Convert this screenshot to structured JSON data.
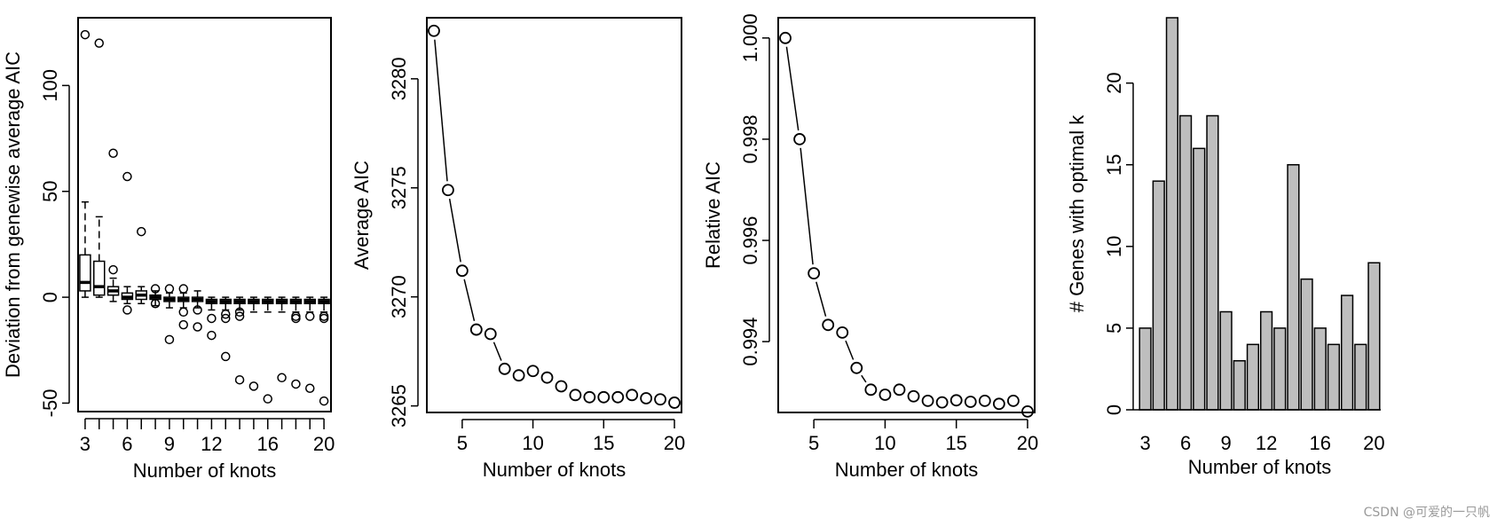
{
  "watermark": "CSDN @可爱的一只帆",
  "chart_data": [
    {
      "type": "box",
      "xlabel": "Number of knots",
      "ylabel": "Deviation from genewise average AIC",
      "xlim": [
        2.5,
        20.5
      ],
      "ylim": [
        -54,
        132
      ],
      "xticks": [
        3,
        6,
        9,
        12,
        16,
        20
      ],
      "yticks": [
        -50,
        0,
        50,
        100
      ],
      "boxes": [
        {
          "k": 3,
          "wlo": 0,
          "q1": 3,
          "med": 7,
          "q3": 20,
          "whi": 45,
          "outliers": [
            124
          ]
        },
        {
          "k": 4,
          "wlo": 0,
          "q1": 1,
          "med": 5,
          "q3": 17,
          "whi": 38,
          "outliers": [
            120
          ]
        },
        {
          "k": 5,
          "wlo": -2,
          "q1": 1,
          "med": 3,
          "q3": 5,
          "whi": 9,
          "outliers": [
            13,
            68
          ]
        },
        {
          "k": 6,
          "wlo": -3,
          "q1": -1,
          "med": 0,
          "q3": 2,
          "whi": 5,
          "outliers": [
            -6,
            57
          ]
        },
        {
          "k": 7,
          "wlo": -3,
          "q1": -1,
          "med": 1,
          "q3": 3,
          "whi": 5,
          "outliers": [
            31
          ]
        },
        {
          "k": 8,
          "wlo": -4,
          "q1": -1,
          "med": 0,
          "q3": 1,
          "whi": 3,
          "outliers": [
            4,
            -3
          ]
        },
        {
          "k": 9,
          "wlo": -5,
          "q1": -2,
          "med": -1,
          "q3": 0,
          "whi": 2,
          "outliers": [
            4,
            -20
          ]
        },
        {
          "k": 10,
          "wlo": -5,
          "q1": -2,
          "med": -1,
          "q3": 0,
          "whi": 2,
          "outliers": [
            4,
            -7,
            -13
          ]
        },
        {
          "k": 11,
          "wlo": -5,
          "q1": -2,
          "med": -1,
          "q3": 0,
          "whi": 3,
          "outliers": [
            -6,
            -14
          ]
        },
        {
          "k": 12,
          "wlo": -6,
          "q1": -3,
          "med": -2,
          "q3": -1,
          "whi": 0,
          "outliers": [
            -10,
            -18
          ]
        },
        {
          "k": 13,
          "wlo": -6,
          "q1": -3,
          "med": -2,
          "q3": -1,
          "whi": 0,
          "outliers": [
            -8,
            -10,
            -28
          ]
        },
        {
          "k": 14,
          "wlo": -6,
          "q1": -3,
          "med": -2,
          "q3": -1,
          "whi": 0,
          "outliers": [
            -7,
            -9,
            -39
          ]
        },
        {
          "k": 15,
          "wlo": -7,
          "q1": -3,
          "med": -2,
          "q3": -1,
          "whi": 0,
          "outliers": [
            -42
          ]
        },
        {
          "k": 16,
          "wlo": -7,
          "q1": -3,
          "med": -2,
          "q3": -1,
          "whi": 0,
          "outliers": [
            -48
          ]
        },
        {
          "k": 17,
          "wlo": -7,
          "q1": -3,
          "med": -2,
          "q3": -1,
          "whi": 0,
          "outliers": [
            -38
          ]
        },
        {
          "k": 18,
          "wlo": -7,
          "q1": -3,
          "med": -2,
          "q3": -1,
          "whi": 0,
          "outliers": [
            -9,
            -10,
            -41
          ]
        },
        {
          "k": 19,
          "wlo": -7,
          "q1": -3,
          "med": -2,
          "q3": -1,
          "whi": 0,
          "outliers": [
            -9,
            -43
          ]
        },
        {
          "k": 20,
          "wlo": -7,
          "q1": -3,
          "med": -2,
          "q3": -1,
          "whi": 0,
          "outliers": [
            -9,
            -10,
            -49
          ]
        }
      ]
    },
    {
      "type": "line",
      "xlabel": "Number of knots",
      "ylabel": "Average AIC",
      "xlim": [
        2.5,
        20.5
      ],
      "ylim": [
        3264.7,
        3282.8
      ],
      "xticks": [
        5,
        10,
        15,
        20
      ],
      "yticks": [
        3265,
        3270,
        3275,
        3280
      ],
      "x": [
        3,
        4,
        5,
        6,
        7,
        8,
        9,
        10,
        11,
        12,
        13,
        14,
        15,
        16,
        17,
        18,
        19,
        20
      ],
      "y": [
        3282.2,
        3274.9,
        3271.2,
        3268.5,
        3268.3,
        3266.7,
        3266.4,
        3266.6,
        3266.3,
        3265.9,
        3265.5,
        3265.4,
        3265.4,
        3265.4,
        3265.5,
        3265.35,
        3265.3,
        3265.15
      ]
    },
    {
      "type": "line",
      "xlabel": "Number of knots",
      "ylabel": "Relative AIC",
      "xlim": [
        2.5,
        20.5
      ],
      "ylim": [
        0.9926,
        1.0004
      ],
      "xticks": [
        5,
        10,
        15,
        20
      ],
      "yticks": [
        "0.994",
        "0.996",
        "0.998",
        "1.000"
      ],
      "x": [
        3,
        4,
        5,
        6,
        7,
        8,
        9,
        10,
        11,
        12,
        13,
        14,
        15,
        16,
        17,
        18,
        19,
        20
      ],
      "y": [
        1.0,
        0.998,
        0.99535,
        0.99433,
        0.99418,
        0.99348,
        0.99305,
        0.99295,
        0.99305,
        0.99292,
        0.99283,
        0.9928,
        0.99284,
        0.99281,
        0.99283,
        0.99277,
        0.99283,
        0.99262
      ]
    },
    {
      "type": "bar",
      "xlabel": "Number of knots",
      "ylabel": "# Genes with optimal k",
      "ylim": [
        0,
        24
      ],
      "xticks": [
        3,
        6,
        9,
        12,
        16,
        20
      ],
      "yticks": [
        0,
        5,
        10,
        15,
        20
      ],
      "categories": [
        3,
        4,
        5,
        6,
        7,
        8,
        9,
        10,
        11,
        12,
        13,
        14,
        15,
        16,
        17,
        18,
        19,
        20
      ],
      "values": [
        5,
        14,
        24,
        18,
        16,
        18,
        6,
        3,
        4,
        6,
        5,
        15,
        8,
        5,
        4,
        7,
        4,
        9
      ],
      "bar_color": "#bebebe"
    }
  ]
}
